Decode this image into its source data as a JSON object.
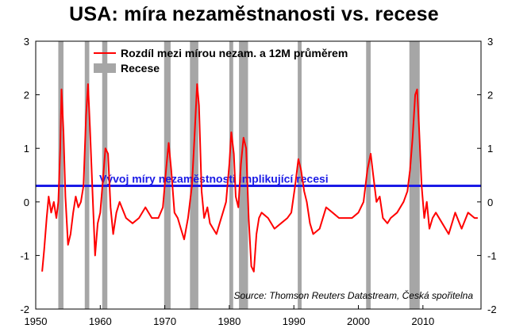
{
  "chart_data": {
    "type": "line",
    "title": "USA: míra nezaměstnanosti vs. recese",
    "xlabel": "",
    "ylabel": "",
    "xlim": [
      1950,
      2019
    ],
    "ylim": [
      -2,
      3
    ],
    "x_ticks": [
      1950,
      1960,
      1970,
      1980,
      1990,
      2000,
      2010
    ],
    "y_ticks": [
      -2,
      -1,
      0,
      1,
      2,
      3
    ],
    "grid": false,
    "legend_position": "top",
    "series": [
      {
        "name": "Rozdíl mezi mírou nezam. a 12M průměrem",
        "color": "#ff0000",
        "x": [
          1951.0,
          1951.3,
          1951.7,
          1952.0,
          1952.4,
          1952.8,
          1953.2,
          1953.5,
          1953.8,
          1954.0,
          1954.3,
          1954.6,
          1955.0,
          1955.4,
          1955.8,
          1956.2,
          1956.6,
          1957.0,
          1957.4,
          1957.8,
          1958.1,
          1958.4,
          1958.8,
          1959.2,
          1959.6,
          1960.0,
          1960.4,
          1960.8,
          1961.2,
          1961.6,
          1962.0,
          1962.5,
          1963.0,
          1964.0,
          1965.0,
          1966.0,
          1967.0,
          1968.0,
          1969.0,
          1969.7,
          1970.2,
          1970.6,
          1971.0,
          1971.5,
          1972.0,
          1972.5,
          1973.0,
          1973.6,
          1974.2,
          1974.6,
          1975.0,
          1975.3,
          1975.7,
          1976.1,
          1976.6,
          1977.0,
          1977.5,
          1978.0,
          1978.5,
          1979.0,
          1979.5,
          1980.0,
          1980.3,
          1980.7,
          1981.0,
          1981.4,
          1981.8,
          1982.2,
          1982.6,
          1983.0,
          1983.4,
          1983.8,
          1984.2,
          1984.6,
          1985.0,
          1986.0,
          1987.0,
          1988.0,
          1989.0,
          1989.6,
          1990.2,
          1990.7,
          1991.1,
          1991.6,
          1992.0,
          1992.5,
          1993.0,
          1994.0,
          1995.0,
          1996.0,
          1997.0,
          1998.0,
          1999.0,
          2000.0,
          2000.8,
          2001.4,
          2001.9,
          2002.3,
          2002.8,
          2003.3,
          2003.8,
          2004.5,
          2005.0,
          2006.0,
          2007.0,
          2007.6,
          2008.0,
          2008.4,
          2008.8,
          2009.1,
          2009.4,
          2009.8,
          2010.2,
          2010.6,
          2011.0,
          2011.5,
          2012.0,
          2013.0,
          2014.0,
          2015.0,
          2016.0,
          2017.0,
          2018.0,
          2018.5
        ],
        "values": [
          -1.3,
          -0.9,
          -0.3,
          0.1,
          -0.2,
          0.0,
          -0.3,
          0.0,
          1.0,
          2.1,
          1.3,
          0.1,
          -0.8,
          -0.6,
          -0.2,
          0.1,
          -0.1,
          0.0,
          0.3,
          1.6,
          2.2,
          1.4,
          0.2,
          -1.0,
          -0.4,
          -0.2,
          0.4,
          1.0,
          0.9,
          -0.1,
          -0.6,
          -0.2,
          0.0,
          -0.3,
          -0.4,
          -0.3,
          -0.1,
          -0.3,
          -0.3,
          -0.1,
          0.6,
          1.1,
          0.6,
          -0.2,
          -0.3,
          -0.5,
          -0.7,
          -0.3,
          0.3,
          1.2,
          2.2,
          1.8,
          0.2,
          -0.3,
          -0.1,
          -0.4,
          -0.5,
          -0.6,
          -0.4,
          -0.2,
          0.0,
          0.7,
          1.3,
          0.9,
          0.1,
          -0.1,
          0.7,
          1.2,
          1.0,
          -0.3,
          -1.2,
          -1.3,
          -0.6,
          -0.3,
          -0.2,
          -0.3,
          -0.5,
          -0.4,
          -0.3,
          -0.2,
          0.3,
          0.8,
          0.6,
          0.2,
          0.0,
          -0.4,
          -0.6,
          -0.5,
          -0.1,
          -0.2,
          -0.3,
          -0.3,
          -0.3,
          -0.2,
          0.0,
          0.6,
          0.9,
          0.5,
          0.0,
          0.1,
          -0.3,
          -0.4,
          -0.3,
          -0.2,
          0.0,
          0.2,
          0.6,
          1.2,
          2.0,
          2.1,
          1.4,
          0.3,
          -0.3,
          0.0,
          -0.5,
          -0.3,
          -0.2,
          -0.4,
          -0.6,
          -0.2,
          -0.5,
          -0.2,
          -0.3,
          -0.3
        ]
      }
    ],
    "threshold": {
      "value": 0.3,
      "color": "#1a1ae6",
      "label": "Vývoj míry nezaměstnosti implikující recesi"
    },
    "recessions": {
      "name": "Recese",
      "color": "#a6a6a6",
      "periods": [
        [
          1953.5,
          1954.3
        ],
        [
          1957.6,
          1958.3
        ],
        [
          1960.3,
          1961.1
        ],
        [
          1969.9,
          1970.9
        ],
        [
          1973.9,
          1975.2
        ],
        [
          1980.0,
          1980.6
        ],
        [
          1981.5,
          1982.9
        ],
        [
          1990.6,
          1991.2
        ],
        [
          2001.2,
          2001.9
        ],
        [
          2007.9,
          2009.5
        ]
      ]
    },
    "source": "Source: Thomson Reuters Datastream, Česká spořitelna"
  }
}
